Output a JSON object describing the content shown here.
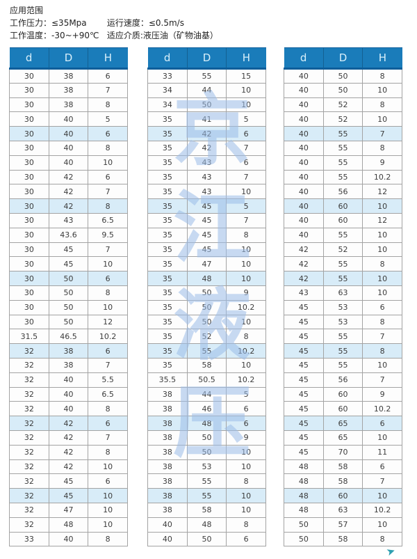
{
  "info": {
    "title": "应用范围",
    "row1_left": "工作压力：≤35Mpa",
    "row1_right": "运行速度：≤0.5m/s",
    "row2_left": "工作温度：-30~+90℃",
    "row2_right": "适应介质:液压油（矿物油基）"
  },
  "table_style": {
    "highlight_every": 5
  },
  "colors": {
    "header_bg": "#1a7cba",
    "header_text": "#d8effa",
    "row_highlight": "#d8ecf8",
    "border": "#a3a3a3",
    "cell_text": "#3c3c3c",
    "watermark": "#9cbde8",
    "corner_arrow": "#2f9fb0"
  },
  "watermark": {
    "chars": [
      "京",
      "江",
      "液",
      "压"
    ]
  },
  "corner_mark": "➤",
  "tables": [
    {
      "headers": [
        "d",
        "D",
        "H"
      ],
      "rows": [
        [
          "30",
          "38",
          "6"
        ],
        [
          "30",
          "38",
          "7"
        ],
        [
          "30",
          "38",
          "8"
        ],
        [
          "30",
          "40",
          "5"
        ],
        [
          "30",
          "40",
          "6"
        ],
        [
          "30",
          "40",
          "8"
        ],
        [
          "30",
          "40",
          "10"
        ],
        [
          "30",
          "42",
          "6"
        ],
        [
          "30",
          "42",
          "7"
        ],
        [
          "30",
          "42",
          "8"
        ],
        [
          "30",
          "43",
          "6.5"
        ],
        [
          "30",
          "43.6",
          "9.5"
        ],
        [
          "30",
          "45",
          "7"
        ],
        [
          "30",
          "45",
          "10"
        ],
        [
          "30",
          "50",
          "6"
        ],
        [
          "30",
          "50",
          "8"
        ],
        [
          "30",
          "50",
          "10"
        ],
        [
          "30",
          "50",
          "12"
        ],
        [
          "31.5",
          "46.5",
          "10.2"
        ],
        [
          "32",
          "38",
          "6"
        ],
        [
          "32",
          "38",
          "7"
        ],
        [
          "32",
          "40",
          "5.5"
        ],
        [
          "32",
          "40",
          "6.5"
        ],
        [
          "32",
          "40",
          "8"
        ],
        [
          "32",
          "42",
          "6"
        ],
        [
          "32",
          "42",
          "7"
        ],
        [
          "32",
          "42",
          "8"
        ],
        [
          "32",
          "42",
          "10"
        ],
        [
          "32",
          "45",
          "6"
        ],
        [
          "32",
          "45",
          "10"
        ],
        [
          "32",
          "47",
          "10"
        ],
        [
          "32",
          "48",
          "10"
        ],
        [
          "33",
          "40",
          "8"
        ]
      ]
    },
    {
      "headers": [
        "d",
        "D",
        "H"
      ],
      "rows": [
        [
          "33",
          "55",
          "15"
        ],
        [
          "34",
          "44",
          "10"
        ],
        [
          "34",
          "50",
          "10"
        ],
        [
          "35",
          "41",
          "5"
        ],
        [
          "35",
          "42",
          "6"
        ],
        [
          "35",
          "42",
          "7"
        ],
        [
          "35",
          "43",
          "6"
        ],
        [
          "35",
          "43",
          "7"
        ],
        [
          "35",
          "43",
          "10"
        ],
        [
          "35",
          "45",
          "5"
        ],
        [
          "35",
          "45",
          "7"
        ],
        [
          "35",
          "45",
          "8"
        ],
        [
          "35",
          "45",
          "10"
        ],
        [
          "35",
          "47",
          "10"
        ],
        [
          "35",
          "48",
          "10"
        ],
        [
          "35",
          "50",
          "9"
        ],
        [
          "35",
          "50",
          "10.2"
        ],
        [
          "35",
          "50",
          "10"
        ],
        [
          "35",
          "52",
          "8"
        ],
        [
          "35",
          "55",
          "10.2"
        ],
        [
          "35",
          "58",
          "10"
        ],
        [
          "35.5",
          "50.5",
          "10.2"
        ],
        [
          "38",
          "44",
          "5"
        ],
        [
          "38",
          "46",
          "6"
        ],
        [
          "38",
          "48",
          "6"
        ],
        [
          "38",
          "50",
          "9"
        ],
        [
          "38",
          "50",
          "10"
        ],
        [
          "38",
          "53",
          "10"
        ],
        [
          "38",
          "55",
          "8"
        ],
        [
          "38",
          "55",
          "10"
        ],
        [
          "38",
          "58",
          "10"
        ],
        [
          "40",
          "48",
          "8"
        ],
        [
          "40",
          "50",
          "6"
        ]
      ]
    },
    {
      "headers": [
        "d",
        "D",
        "H"
      ],
      "rows": [
        [
          "40",
          "50",
          "8"
        ],
        [
          "40",
          "50",
          "10"
        ],
        [
          "40",
          "52",
          "8"
        ],
        [
          "40",
          "52",
          "10"
        ],
        [
          "40",
          "55",
          "7"
        ],
        [
          "40",
          "55",
          "8"
        ],
        [
          "40",
          "55",
          "9"
        ],
        [
          "40",
          "55",
          "10.2"
        ],
        [
          "40",
          "56",
          "12"
        ],
        [
          "40",
          "60",
          "10"
        ],
        [
          "40",
          "60",
          "12"
        ],
        [
          "40",
          "55",
          "10"
        ],
        [
          "42",
          "52",
          "10"
        ],
        [
          "42",
          "55",
          "8"
        ],
        [
          "42",
          "55",
          "10"
        ],
        [
          "43",
          "63",
          "10"
        ],
        [
          "45",
          "53",
          "6"
        ],
        [
          "45",
          "53",
          "8"
        ],
        [
          "45",
          "55",
          "7"
        ],
        [
          "45",
          "55",
          "8"
        ],
        [
          "45",
          "55",
          "10"
        ],
        [
          "45",
          "56",
          "7"
        ],
        [
          "45",
          "60",
          "9"
        ],
        [
          "45",
          "60",
          "10.2"
        ],
        [
          "45",
          "65",
          "6"
        ],
        [
          "45",
          "65",
          "10"
        ],
        [
          "45",
          "70",
          "11"
        ],
        [
          "48",
          "58",
          "6"
        ],
        [
          "48",
          "58",
          "7"
        ],
        [
          "48",
          "60",
          "10"
        ],
        [
          "48",
          "63",
          "10.2"
        ],
        [
          "50",
          "57",
          "10"
        ],
        [
          "50",
          "58",
          "8"
        ]
      ]
    }
  ]
}
